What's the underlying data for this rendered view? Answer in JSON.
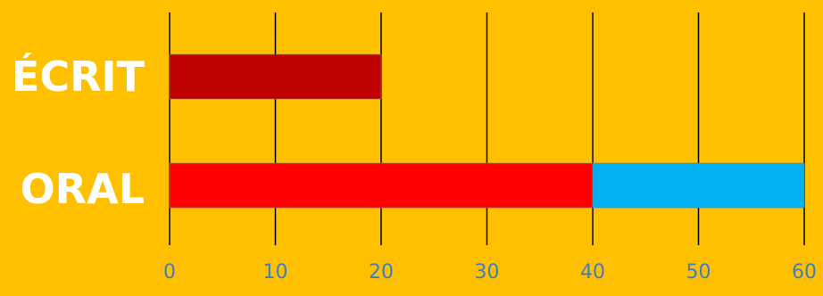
{
  "chart_data": {
    "type": "bar",
    "orientation": "horizontal",
    "stacked": true,
    "categories": [
      "ÉCRIT",
      "ORAL"
    ],
    "series": [
      {
        "color": "#c00000",
        "values": [
          20,
          0
        ]
      },
      {
        "color": "#ff0000",
        "values": [
          0,
          40
        ]
      },
      {
        "color": "#00b0f0",
        "values": [
          0,
          20
        ]
      }
    ],
    "xlim": [
      0,
      60
    ],
    "ticks": [
      0,
      10,
      20,
      30,
      40,
      50,
      60
    ],
    "grid": true,
    "title": "",
    "xlabel": "",
    "ylabel": "",
    "colors": {
      "background": "#ffc000",
      "tick_label": "#3f7fbf",
      "category_label": "#ffffff",
      "grid": "#000000"
    }
  }
}
